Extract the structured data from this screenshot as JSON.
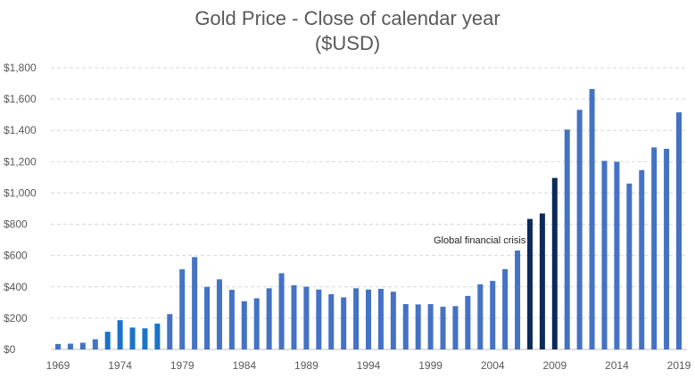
{
  "chart_data": {
    "type": "bar",
    "title_line1": "Gold Price - Close of calendar year",
    "title_line2": "($USD)",
    "ylim": [
      0,
      1800
    ],
    "yticks": [
      0,
      200,
      400,
      600,
      800,
      1000,
      1200,
      1400,
      1600,
      1800
    ],
    "ytick_labels": [
      "$0",
      "$200",
      "$400",
      "$600",
      "$800",
      "$1,000",
      "$1,200",
      "$1,400",
      "$1,600",
      "$1,800"
    ],
    "x_tick_labels": [
      "1969",
      "1974",
      "1979",
      "1984",
      "1989",
      "1994",
      "1999",
      "2004",
      "2009",
      "2014",
      "2019"
    ],
    "categories": [
      1969,
      1970,
      1971,
      1972,
      1973,
      1974,
      1975,
      1976,
      1977,
      1978,
      1979,
      1980,
      1981,
      1982,
      1983,
      1984,
      1985,
      1986,
      1987,
      1988,
      1989,
      1990,
      1991,
      1992,
      1993,
      1994,
      1995,
      1996,
      1997,
      1998,
      1999,
      2000,
      2001,
      2002,
      2003,
      2004,
      2005,
      2006,
      2007,
      2008,
      2009,
      2010,
      2011,
      2012,
      2013,
      2014,
      2015,
      2016,
      2017,
      2018,
      2019
    ],
    "values": [
      35,
      37,
      43,
      65,
      113,
      187,
      140,
      135,
      165,
      226,
      512,
      590,
      400,
      448,
      381,
      308,
      327,
      391,
      487,
      410,
      401,
      383,
      353,
      333,
      391,
      383,
      387,
      369,
      290,
      288,
      290,
      273,
      277,
      342,
      416,
      438,
      513,
      632,
      834,
      869,
      1096,
      1405,
      1531,
      1664,
      1205,
      1199,
      1060,
      1146,
      1291,
      1282,
      1515
    ],
    "highlight_years": [
      2007,
      2008,
      2009
    ],
    "highlight_color": "#0d2a5c",
    "bar_color": "#4472c4",
    "alt_color": "#1a73c8",
    "alt_years": [
      1973,
      1974,
      1975,
      1976,
      1977
    ],
    "annotation": "Global financial crisis",
    "grid": true
  }
}
